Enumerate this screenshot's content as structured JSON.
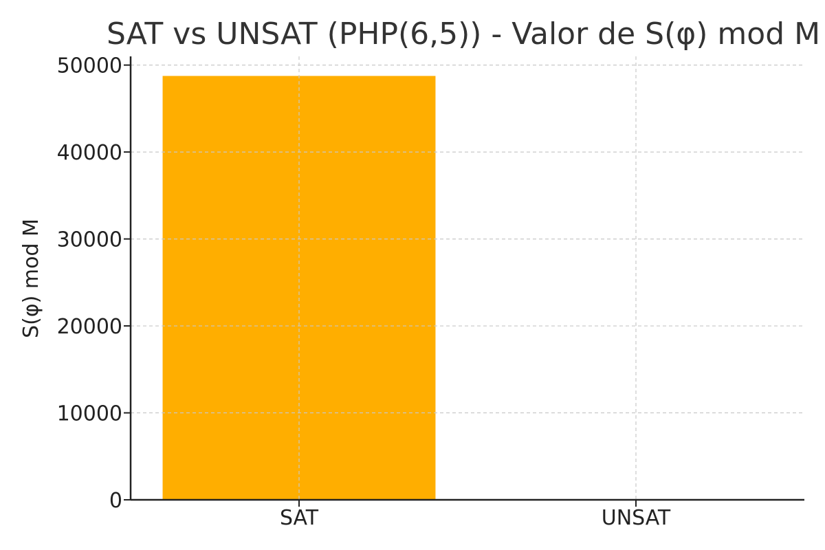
{
  "chart_data": {
    "type": "bar",
    "title": "SAT vs UNSAT (PHP(6,5)) - Valor de S(φ) mod M",
    "xlabel": "",
    "ylabel": "S(φ) mod M",
    "categories": [
      "SAT",
      "UNSAT"
    ],
    "values": [
      48750,
      0
    ],
    "ylim": [
      0,
      51000
    ],
    "yticks": [
      0,
      10000,
      20000,
      30000,
      40000,
      50000
    ],
    "bar_color": "#FFAE00",
    "grid": true
  }
}
